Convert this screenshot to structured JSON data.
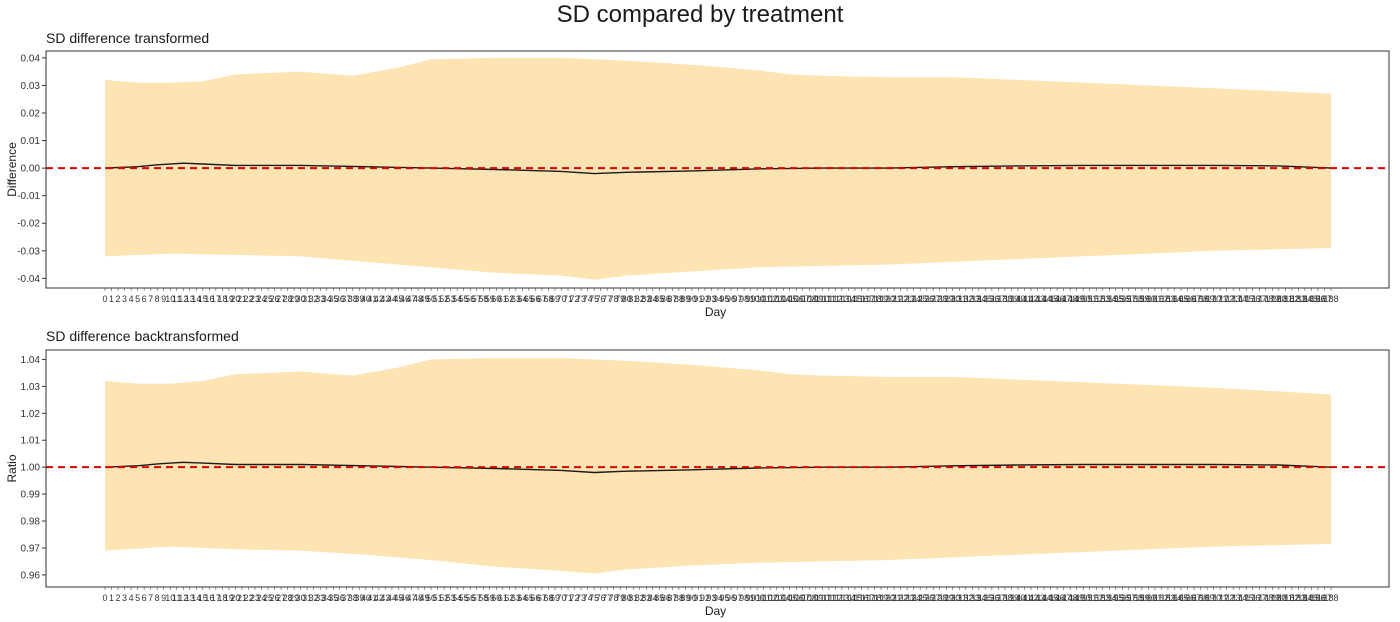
{
  "figure_title": "SD compared by treatment",
  "colors": {
    "band": "#fde4b2",
    "line": "#1a1a1a",
    "zero_line": "#e00000",
    "frame": "#333333"
  },
  "chart_data": [
    {
      "type": "area",
      "title": "SD difference transformed",
      "xlabel": "Day",
      "ylabel": "Difference",
      "x_range": [
        0,
        188
      ],
      "x_ticks_note": "integer tick labels at every day from 0 to 188 (overlapping)",
      "ylim": [
        -0.0435,
        0.0425
      ],
      "y_ticks": [
        {
          "value": 0.04,
          "label": "0.04"
        },
        {
          "value": 0.03,
          "label": "0.03"
        },
        {
          "value": 0.02,
          "label": "0.02"
        },
        {
          "value": 0.01,
          "label": "0.01"
        },
        {
          "value": 0.0,
          "label": "0.00"
        },
        {
          "value": -0.01,
          "label": "-0.01"
        },
        {
          "value": -0.02,
          "label": "-0.02"
        },
        {
          "value": -0.03,
          "label": "-0.03"
        },
        {
          "value": -0.04,
          "label": "-0.04"
        }
      ],
      "reference_line": 0,
      "series": [
        {
          "name": "upper_ci",
          "x": [
            0,
            5,
            10,
            15,
            20,
            30,
            38,
            45,
            50,
            60,
            70,
            80,
            90,
            100,
            105,
            110,
            120,
            130,
            140,
            150,
            160,
            170,
            188
          ],
          "values": [
            0.032,
            0.031,
            0.031,
            0.0315,
            0.034,
            0.035,
            0.0335,
            0.0365,
            0.0395,
            0.04,
            0.04,
            0.039,
            0.0375,
            0.0355,
            0.034,
            0.0335,
            0.033,
            0.033,
            0.032,
            0.031,
            0.03,
            0.029,
            0.027
          ]
        },
        {
          "name": "lower_ci",
          "x": [
            0,
            10,
            20,
            30,
            40,
            50,
            60,
            70,
            75,
            80,
            90,
            100,
            110,
            120,
            130,
            140,
            150,
            160,
            170,
            188
          ],
          "values": [
            -0.032,
            -0.031,
            -0.0315,
            -0.032,
            -0.034,
            -0.036,
            -0.038,
            -0.039,
            -0.0405,
            -0.039,
            -0.0375,
            -0.036,
            -0.0355,
            -0.035,
            -0.034,
            -0.033,
            -0.032,
            -0.031,
            -0.03,
            -0.029
          ]
        },
        {
          "name": "estimate",
          "x": [
            0,
            5,
            8,
            12,
            15,
            20,
            30,
            40,
            50,
            60,
            70,
            75,
            80,
            90,
            100,
            110,
            120,
            130,
            140,
            150,
            160,
            170,
            180,
            188
          ],
          "values": [
            0.0,
            0.0005,
            0.0012,
            0.0018,
            0.0015,
            0.001,
            0.001,
            0.0005,
            0.0,
            -0.0005,
            -0.0012,
            -0.002,
            -0.0015,
            -0.001,
            -0.0003,
            0.0,
            0.0,
            0.0005,
            0.0008,
            0.001,
            0.001,
            0.001,
            0.0008,
            0.0
          ]
        }
      ]
    },
    {
      "type": "area",
      "title": "SD difference backtransformed",
      "xlabel": "Day",
      "ylabel": "Ratio",
      "x_range": [
        0,
        188
      ],
      "x_ticks_note": "integer tick labels at every day from 0 to 188 (overlapping)",
      "ylim": [
        0.9555,
        1.0435
      ],
      "y_ticks": [
        {
          "value": 1.04,
          "label": "1.04"
        },
        {
          "value": 1.03,
          "label": "1.03"
        },
        {
          "value": 1.02,
          "label": "1.02"
        },
        {
          "value": 1.01,
          "label": "1.01"
        },
        {
          "value": 1.0,
          "label": "1.00"
        },
        {
          "value": 0.99,
          "label": "0.99"
        },
        {
          "value": 0.98,
          "label": "0.98"
        },
        {
          "value": 0.97,
          "label": "0.97"
        },
        {
          "value": 0.96,
          "label": "0.96"
        }
      ],
      "reference_line": 1,
      "series": [
        {
          "name": "upper_ci",
          "x": [
            0,
            5,
            10,
            15,
            20,
            30,
            38,
            45,
            50,
            60,
            70,
            80,
            90,
            100,
            105,
            110,
            120,
            130,
            140,
            150,
            160,
            170,
            188
          ],
          "values": [
            1.032,
            1.031,
            1.031,
            1.032,
            1.0345,
            1.0355,
            1.034,
            1.037,
            1.04,
            1.0405,
            1.0405,
            1.0395,
            1.038,
            1.036,
            1.0345,
            1.034,
            1.0335,
            1.0335,
            1.0325,
            1.0315,
            1.0305,
            1.0295,
            1.027
          ]
        },
        {
          "name": "lower_ci",
          "x": [
            0,
            10,
            20,
            30,
            40,
            50,
            60,
            70,
            75,
            80,
            90,
            100,
            110,
            120,
            130,
            140,
            150,
            160,
            170,
            188
          ],
          "values": [
            0.969,
            0.9705,
            0.9695,
            0.969,
            0.9675,
            0.9655,
            0.963,
            0.9615,
            0.9605,
            0.962,
            0.9635,
            0.9645,
            0.965,
            0.9655,
            0.9665,
            0.9675,
            0.9685,
            0.9695,
            0.9705,
            0.9715
          ]
        },
        {
          "name": "estimate",
          "x": [
            0,
            5,
            8,
            12,
            15,
            20,
            30,
            40,
            50,
            60,
            70,
            75,
            80,
            90,
            100,
            110,
            120,
            130,
            140,
            150,
            160,
            170,
            180,
            188
          ],
          "values": [
            1.0,
            1.0005,
            1.0012,
            1.0018,
            1.0015,
            1.001,
            1.001,
            1.0005,
            1.0,
            0.9995,
            0.9988,
            0.998,
            0.9985,
            0.999,
            0.9997,
            1.0,
            1.0,
            1.0005,
            1.0008,
            1.001,
            1.001,
            1.001,
            1.0008,
            1.0
          ]
        }
      ]
    }
  ]
}
